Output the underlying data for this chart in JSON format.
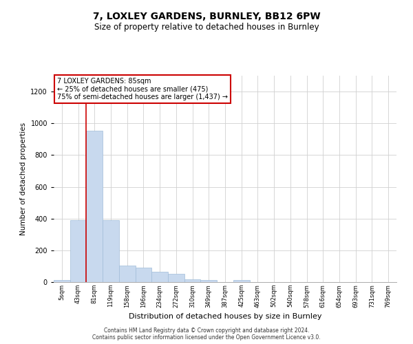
{
  "title1": "7, LOXLEY GARDENS, BURNLEY, BB12 6PW",
  "title2": "Size of property relative to detached houses in Burnley",
  "xlabel": "Distribution of detached houses by size in Burnley",
  "ylabel": "Number of detached properties",
  "footer1": "Contains HM Land Registry data © Crown copyright and database right 2024.",
  "footer2": "Contains public sector information licensed under the Open Government Licence v3.0.",
  "annotation_line1": "7 LOXLEY GARDENS: 85sqm",
  "annotation_line2": "← 25% of detached houses are smaller (475)",
  "annotation_line3": "75% of semi-detached houses are larger (1,437) →",
  "bar_color": "#c8d9ee",
  "bar_edge_color": "#a0bcd8",
  "vline_color": "#cc0000",
  "vline_x_index": 2,
  "categories": [
    "5sqm",
    "43sqm",
    "81sqm",
    "119sqm",
    "158sqm",
    "196sqm",
    "234sqm",
    "272sqm",
    "310sqm",
    "349sqm",
    "387sqm",
    "425sqm",
    "463sqm",
    "502sqm",
    "540sqm",
    "578sqm",
    "616sqm",
    "654sqm",
    "693sqm",
    "731sqm",
    "769sqm"
  ],
  "values": [
    15,
    390,
    955,
    390,
    105,
    90,
    65,
    50,
    18,
    12,
    0,
    12,
    0,
    0,
    0,
    0,
    0,
    0,
    0,
    0,
    0
  ],
  "ylim": [
    0,
    1300
  ],
  "yticks": [
    0,
    200,
    400,
    600,
    800,
    1000,
    1200
  ],
  "background_color": "#ffffff",
  "grid_color": "#d0d0d0",
  "title1_fontsize": 10,
  "title2_fontsize": 8.5,
  "xlabel_fontsize": 8,
  "ylabel_fontsize": 7.5,
  "xtick_fontsize": 6,
  "ytick_fontsize": 7,
  "footer_fontsize": 5.5,
  "annot_fontsize": 7
}
